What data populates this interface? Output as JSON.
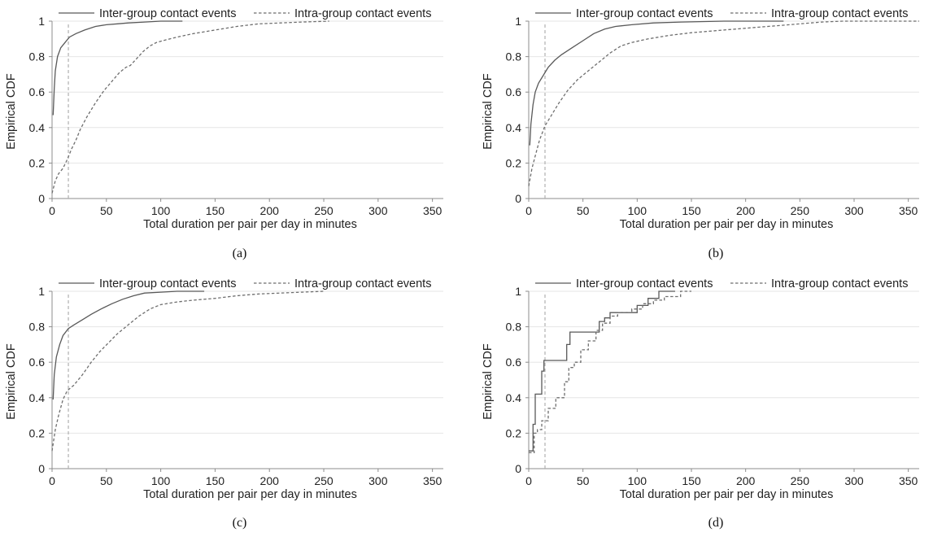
{
  "figure": {
    "subplots": [
      "a",
      "b",
      "c",
      "d"
    ]
  },
  "chart_data": [
    {
      "id": "a",
      "caption": "(a)",
      "type": "line",
      "xlabel": "Total duration per pair per day in minutes",
      "ylabel": "Empirical CDF",
      "xlim": [
        0,
        360
      ],
      "ylim": [
        0,
        1
      ],
      "xticks": [
        0,
        50,
        100,
        150,
        200,
        250,
        300,
        350
      ],
      "yticks": [
        0,
        0.2,
        0.4,
        0.6,
        0.8,
        1
      ],
      "ytick_labels": [
        "0",
        "0.2",
        "0.4",
        "0.6",
        "0.8",
        "1"
      ],
      "grid": "horizontal",
      "legend_position": "top",
      "reference_line_x": 15,
      "series": [
        {
          "name": "Inter-group contact events",
          "style": "solid",
          "color": "#595959",
          "step": false,
          "points": [
            [
              1,
              0.47
            ],
            [
              2,
              0.62
            ],
            [
              3,
              0.72
            ],
            [
              5,
              0.8
            ],
            [
              8,
              0.85
            ],
            [
              12,
              0.88
            ],
            [
              16,
              0.91
            ],
            [
              22,
              0.93
            ],
            [
              30,
              0.95
            ],
            [
              40,
              0.97
            ],
            [
              50,
              0.98
            ],
            [
              60,
              0.985
            ],
            [
              70,
              0.99
            ],
            [
              85,
              0.995
            ],
            [
              100,
              1
            ],
            [
              120,
              1
            ]
          ]
        },
        {
          "name": "Intra-group contact events",
          "style": "dashed",
          "color": "#6e6e6e",
          "step": false,
          "points": [
            [
              0,
              0.03
            ],
            [
              3,
              0.1
            ],
            [
              6,
              0.14
            ],
            [
              10,
              0.17
            ],
            [
              14,
              0.22
            ],
            [
              18,
              0.28
            ],
            [
              22,
              0.33
            ],
            [
              26,
              0.39
            ],
            [
              32,
              0.46
            ],
            [
              40,
              0.54
            ],
            [
              48,
              0.61
            ],
            [
              55,
              0.66
            ],
            [
              62,
              0.71
            ],
            [
              68,
              0.74
            ],
            [
              72,
              0.75
            ],
            [
              78,
              0.79
            ],
            [
              84,
              0.83
            ],
            [
              90,
              0.86
            ],
            [
              96,
              0.88
            ],
            [
              105,
              0.895
            ],
            [
              115,
              0.91
            ],
            [
              130,
              0.93
            ],
            [
              150,
              0.95
            ],
            [
              170,
              0.97
            ],
            [
              190,
              0.985
            ],
            [
              210,
              0.99
            ],
            [
              230,
              0.995
            ],
            [
              255,
              1
            ]
          ]
        }
      ]
    },
    {
      "id": "b",
      "caption": "(b)",
      "type": "line",
      "xlabel": "Total duration per pair per day in minutes",
      "ylabel": "Empirical CDF",
      "xlim": [
        0,
        360
      ],
      "ylim": [
        0,
        1
      ],
      "xticks": [
        0,
        50,
        100,
        150,
        200,
        250,
        300,
        350
      ],
      "yticks": [
        0,
        0.2,
        0.4,
        0.6,
        0.8,
        1
      ],
      "ytick_labels": [
        "0",
        "0.2",
        "0.4",
        "0.6",
        "0.8",
        "1"
      ],
      "grid": "horizontal",
      "legend_position": "top",
      "reference_line_x": 15,
      "series": [
        {
          "name": "Inter-group contact events",
          "style": "solid",
          "color": "#595959",
          "step": false,
          "points": [
            [
              1,
              0.3
            ],
            [
              2,
              0.42
            ],
            [
              4,
              0.53
            ],
            [
              6,
              0.6
            ],
            [
              9,
              0.65
            ],
            [
              13,
              0.69
            ],
            [
              18,
              0.74
            ],
            [
              24,
              0.78
            ],
            [
              30,
              0.81
            ],
            [
              40,
              0.85
            ],
            [
              50,
              0.89
            ],
            [
              60,
              0.93
            ],
            [
              70,
              0.955
            ],
            [
              80,
              0.97
            ],
            [
              95,
              0.98
            ],
            [
              115,
              0.99
            ],
            [
              140,
              0.995
            ],
            [
              180,
              1
            ],
            [
              235,
              1
            ]
          ]
        },
        {
          "name": "Intra-group contact events",
          "style": "dashed",
          "color": "#6e6e6e",
          "step": false,
          "points": [
            [
              0,
              0.07
            ],
            [
              3,
              0.17
            ],
            [
              6,
              0.24
            ],
            [
              10,
              0.33
            ],
            [
              15,
              0.41
            ],
            [
              20,
              0.46
            ],
            [
              28,
              0.54
            ],
            [
              36,
              0.61
            ],
            [
              45,
              0.67
            ],
            [
              55,
              0.72
            ],
            [
              65,
              0.77
            ],
            [
              75,
              0.82
            ],
            [
              85,
              0.86
            ],
            [
              95,
              0.88
            ],
            [
              110,
              0.9
            ],
            [
              130,
              0.92
            ],
            [
              150,
              0.935
            ],
            [
              170,
              0.945
            ],
            [
              190,
              0.955
            ],
            [
              210,
              0.965
            ],
            [
              230,
              0.975
            ],
            [
              250,
              0.985
            ],
            [
              270,
              0.995
            ],
            [
              290,
              1
            ],
            [
              360,
              1
            ]
          ]
        }
      ]
    },
    {
      "id": "c",
      "caption": "(c)",
      "type": "line",
      "xlabel": "Total duration per pair per day in minutes",
      "ylabel": "Empirical CDF",
      "xlim": [
        0,
        360
      ],
      "ylim": [
        0,
        1
      ],
      "xticks": [
        0,
        50,
        100,
        150,
        200,
        250,
        300,
        350
      ],
      "yticks": [
        0,
        0.2,
        0.4,
        0.6,
        0.8,
        1
      ],
      "ytick_labels": [
        "0",
        "0.2",
        "0.4",
        "0.6",
        "0.8",
        "1"
      ],
      "grid": "horizontal",
      "legend_position": "top",
      "reference_line_x": 15,
      "series": [
        {
          "name": "Inter-group contact events",
          "style": "solid",
          "color": "#595959",
          "step": false,
          "points": [
            [
              1,
              0.39
            ],
            [
              2,
              0.53
            ],
            [
              4,
              0.63
            ],
            [
              7,
              0.7
            ],
            [
              10,
              0.75
            ],
            [
              15,
              0.79
            ],
            [
              20,
              0.81
            ],
            [
              28,
              0.84
            ],
            [
              36,
              0.87
            ],
            [
              45,
              0.9
            ],
            [
              55,
              0.93
            ],
            [
              65,
              0.955
            ],
            [
              75,
              0.975
            ],
            [
              85,
              0.99
            ],
            [
              100,
              0.995
            ],
            [
              115,
              1
            ],
            [
              140,
              1
            ]
          ]
        },
        {
          "name": "Intra-group contact events",
          "style": "dashed",
          "color": "#6e6e6e",
          "step": false,
          "points": [
            [
              0,
              0.1
            ],
            [
              3,
              0.22
            ],
            [
              6,
              0.3
            ],
            [
              10,
              0.39
            ],
            [
              14,
              0.44
            ],
            [
              20,
              0.47
            ],
            [
              28,
              0.53
            ],
            [
              36,
              0.6
            ],
            [
              44,
              0.66
            ],
            [
              52,
              0.71
            ],
            [
              60,
              0.76
            ],
            [
              70,
              0.81
            ],
            [
              80,
              0.86
            ],
            [
              90,
              0.9
            ],
            [
              100,
              0.925
            ],
            [
              115,
              0.94
            ],
            [
              130,
              0.95
            ],
            [
              150,
              0.96
            ],
            [
              170,
              0.975
            ],
            [
              190,
              0.985
            ],
            [
              210,
              0.99
            ],
            [
              230,
              0.995
            ],
            [
              250,
              1
            ]
          ]
        }
      ]
    },
    {
      "id": "d",
      "caption": "(d)",
      "type": "line",
      "xlabel": "Total duration per pair per day in minutes",
      "ylabel": "Empirical CDF",
      "xlim": [
        0,
        360
      ],
      "ylim": [
        0,
        1
      ],
      "xticks": [
        0,
        50,
        100,
        150,
        200,
        250,
        300,
        350
      ],
      "yticks": [
        0,
        0.2,
        0.4,
        0.6,
        0.8,
        1
      ],
      "ytick_labels": [
        "0",
        "0.2",
        "0.4",
        "0.6",
        "0.8",
        "1"
      ],
      "grid": "horizontal",
      "legend_position": "top",
      "reference_line_x": 15,
      "series": [
        {
          "name": "Inter-group contact events",
          "style": "solid",
          "color": "#595959",
          "step": true,
          "points": [
            [
              0,
              0.1
            ],
            [
              4,
              0.25
            ],
            [
              6,
              0.42
            ],
            [
              10,
              0.42
            ],
            [
              12,
              0.55
            ],
            [
              14,
              0.61
            ],
            [
              33,
              0.61
            ],
            [
              35,
              0.7
            ],
            [
              38,
              0.77
            ],
            [
              62,
              0.77
            ],
            [
              65,
              0.83
            ],
            [
              70,
              0.85
            ],
            [
              75,
              0.88
            ],
            [
              95,
              0.88
            ],
            [
              100,
              0.92
            ],
            [
              110,
              0.96
            ],
            [
              120,
              1
            ],
            [
              135,
              1
            ]
          ]
        },
        {
          "name": "Intra-group contact events",
          "style": "dashed",
          "color": "#6e6e6e",
          "step": true,
          "points": [
            [
              0,
              0.09
            ],
            [
              5,
              0.2
            ],
            [
              8,
              0.22
            ],
            [
              12,
              0.27
            ],
            [
              18,
              0.34
            ],
            [
              25,
              0.4
            ],
            [
              33,
              0.49
            ],
            [
              37,
              0.57
            ],
            [
              42,
              0.6
            ],
            [
              48,
              0.67
            ],
            [
              55,
              0.72
            ],
            [
              62,
              0.78
            ],
            [
              68,
              0.82
            ],
            [
              75,
              0.86
            ],
            [
              82,
              0.88
            ],
            [
              95,
              0.9
            ],
            [
              105,
              0.93
            ],
            [
              115,
              0.95
            ],
            [
              125,
              0.97
            ],
            [
              140,
              1
            ],
            [
              150,
              1
            ]
          ]
        }
      ]
    }
  ]
}
